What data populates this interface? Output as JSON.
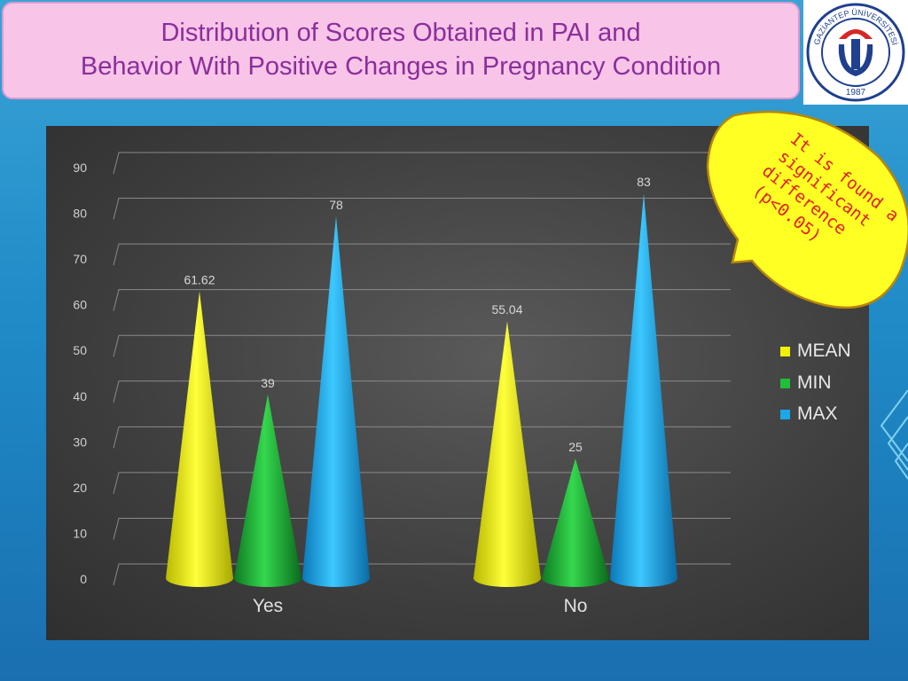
{
  "header": {
    "title_line1": "Distribution of Scores Obtained in PAI and",
    "title_line2": "Behavior With Positive Changes in Pregnancy Condition"
  },
  "logo": {
    "ring_text": "GAZİANTEP ÜNİVERSİTESİ",
    "year": "1987"
  },
  "callout": {
    "lines": [
      "It is found a",
      "significant",
      "difference",
      "(p<0.05)"
    ]
  },
  "chart_data": {
    "type": "bar",
    "shape": "cone",
    "categories": [
      "Yes",
      "No"
    ],
    "series": [
      {
        "name": "MEAN",
        "color": "#f2f200",
        "values": [
          61.62,
          55.04
        ],
        "labels": [
          "61.62",
          "55.04"
        ]
      },
      {
        "name": "MIN",
        "color": "#1fbf3a",
        "values": [
          39,
          25
        ],
        "labels": [
          "39",
          "25"
        ]
      },
      {
        "name": "MAX",
        "color": "#1aa8e8",
        "values": [
          78,
          83
        ],
        "labels": [
          "78",
          "83"
        ]
      }
    ],
    "ylim": [
      0,
      90
    ],
    "yticks": [
      "0",
      "10",
      "20",
      "30",
      "40",
      "50",
      "60",
      "70",
      "80",
      "90"
    ],
    "grid": true,
    "legend": "right"
  }
}
